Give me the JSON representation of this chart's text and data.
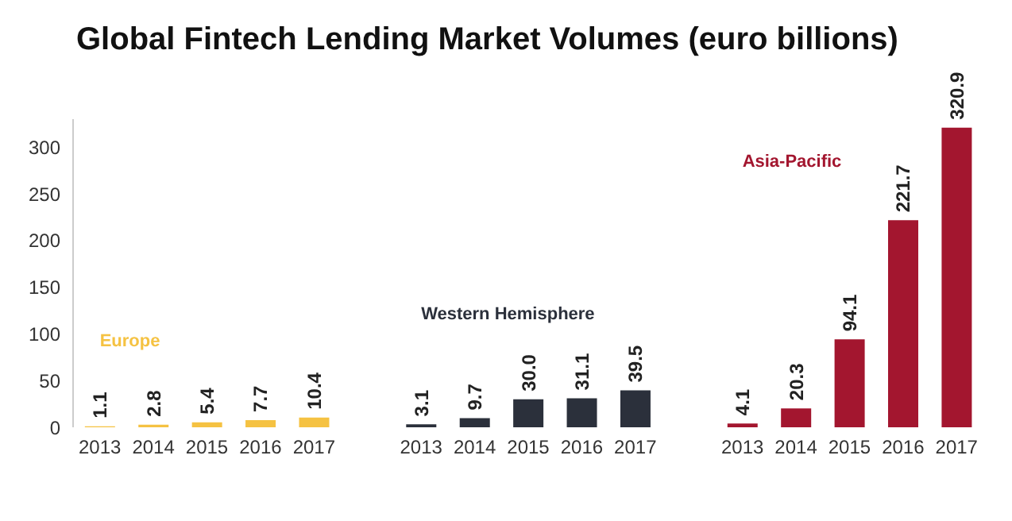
{
  "chart_data": {
    "type": "bar",
    "title": "Global Fintech Lending Market Volumes (euro billions)",
    "categories": [
      "2013",
      "2014",
      "2015",
      "2016",
      "2017",
      null,
      "2013",
      "2014",
      "2015",
      "2016",
      "2017",
      null,
      "2013",
      "2014",
      "2015",
      "2016",
      "2017"
    ],
    "series": [
      {
        "name": "Europe",
        "color": "#f5c242",
        "values": [
          1.1,
          2.8,
          5.4,
          7.7,
          10.4,
          null,
          null,
          null,
          null,
          null,
          null,
          null,
          null,
          null,
          null,
          null,
          null
        ],
        "value_labels": [
          "1.1",
          "2.8",
          "5.4",
          "7.7",
          "10.4",
          null,
          null,
          null,
          null,
          null,
          null,
          null,
          null,
          null,
          null,
          null,
          null
        ]
      },
      {
        "name": "Western Hemisphere",
        "color": "#2b303b",
        "values": [
          null,
          null,
          null,
          null,
          null,
          null,
          3.1,
          9.7,
          30.0,
          31.1,
          39.5,
          null,
          null,
          null,
          null,
          null,
          null
        ],
        "value_labels": [
          null,
          null,
          null,
          null,
          null,
          null,
          "3.1",
          "9.7",
          "30.0",
          "31.1",
          "39.5",
          null,
          null,
          null,
          null,
          null,
          null
        ]
      },
      {
        "name": "Asia-Pacific",
        "color": "#a3162f",
        "values": [
          null,
          null,
          null,
          null,
          null,
          null,
          null,
          null,
          null,
          null,
          null,
          null,
          4.1,
          20.3,
          94.1,
          221.7,
          320.9
        ],
        "value_labels": [
          null,
          null,
          null,
          null,
          null,
          null,
          null,
          null,
          null,
          null,
          null,
          null,
          "4.1",
          "20.3",
          "94.1",
          "221.7",
          "320.9"
        ]
      }
    ],
    "ylim": [
      0,
      330
    ],
    "yticks": [
      0,
      50,
      100,
      150,
      200,
      250,
      300
    ],
    "legend": false,
    "grid": false
  }
}
